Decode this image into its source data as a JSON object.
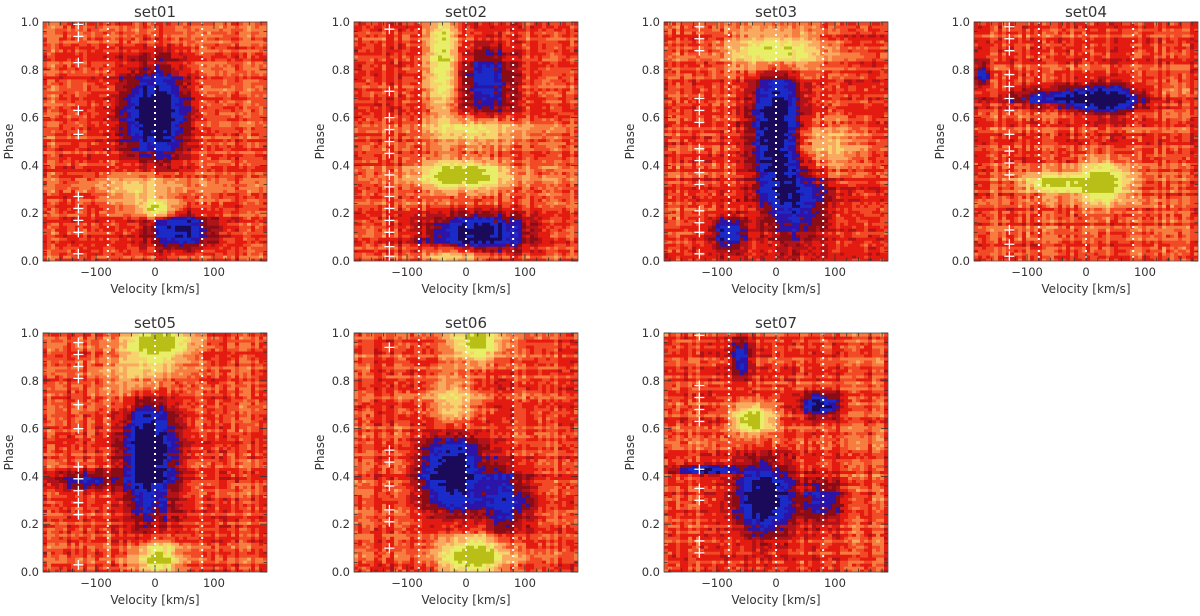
{
  "figure": {
    "colormap": [
      "#e31b10",
      "#f24a26",
      "#f77c40",
      "#f9a960",
      "#f7d36e",
      "#e9ee68",
      "#b9bf16",
      "#8a0d16",
      "#b0141a",
      "#2c14a8",
      "#1a2bc8",
      "#1b0a5a"
    ],
    "marker_color": "#ffffff",
    "guide_line_color": "#ffffff"
  },
  "chart_data": [
    {
      "type": "heatmap",
      "title": "set01",
      "xlabel": "Velocity [km/s]",
      "ylabel": "Phase",
      "xlim": [
        -190,
        190
      ],
      "ylim": [
        0,
        1
      ],
      "xticks": [
        "-100",
        "0",
        "100"
      ],
      "yticks": [
        "0.0",
        "0.2",
        "0.4",
        "0.6",
        "0.8",
        "1.0"
      ],
      "guide_lines_x": [
        -80,
        0,
        80
      ],
      "observation_phases": [
        0.03,
        0.12,
        0.17,
        0.22,
        0.27,
        0.53,
        0.63,
        0.83,
        0.94,
        0.99
      ],
      "features": [
        {
          "kind": "absorption",
          "v": 0,
          "phase": 0.62,
          "dv": 38,
          "dphase": 0.13,
          "strength": 1.0
        },
        {
          "kind": "absorption",
          "v": 45,
          "phase": 0.13,
          "dv": 38,
          "dphase": 0.05,
          "strength": 0.8
        },
        {
          "kind": "emission",
          "v": 5,
          "phase": 0.22,
          "dv": 18,
          "dphase": 0.025,
          "strength": 0.8
        },
        {
          "kind": "emission",
          "v": -25,
          "phase": 0.3,
          "dv": 45,
          "dphase": 0.06,
          "strength": 0.4
        }
      ]
    },
    {
      "type": "heatmap",
      "title": "set02",
      "xlabel": "Velocity [km/s]",
      "ylabel": "Phase",
      "xlim": [
        -190,
        190
      ],
      "ylim": [
        0,
        1
      ],
      "xticks": [
        "-100",
        "0",
        "100"
      ],
      "yticks": [
        "0.0",
        "0.2",
        "0.4",
        "0.6",
        "0.8",
        "1.0"
      ],
      "guide_lines_x": [
        -80,
        0,
        80
      ],
      "observation_phases": [
        0.02,
        0.06,
        0.12,
        0.17,
        0.22,
        0.27,
        0.31,
        0.36,
        0.45,
        0.5,
        0.55,
        0.6,
        0.71,
        0.97
      ],
      "features": [
        {
          "kind": "emission",
          "v": -5,
          "phase": 0.36,
          "dv": 48,
          "dphase": 0.04,
          "strength": 1.0
        },
        {
          "kind": "absorption",
          "v": 20,
          "phase": 0.12,
          "dv": 60,
          "dphase": 0.05,
          "strength": 0.95
        },
        {
          "kind": "emission",
          "v": -40,
          "phase": 0.85,
          "dv": 18,
          "dphase": 0.16,
          "strength": 0.7
        },
        {
          "kind": "emission",
          "v": 20,
          "phase": 0.55,
          "dv": 50,
          "dphase": 0.04,
          "strength": 0.55
        },
        {
          "kind": "absorption",
          "v": 35,
          "phase": 0.75,
          "dv": 30,
          "dphase": 0.1,
          "strength": 0.6
        },
        {
          "kind": "emission",
          "v": -15,
          "phase": 0.02,
          "dv": 40,
          "dphase": 0.03,
          "strength": 0.45
        }
      ]
    },
    {
      "type": "heatmap",
      "title": "set03",
      "xlabel": "Velocity [km/s]",
      "ylabel": "Phase",
      "xlim": [
        -190,
        190
      ],
      "ylim": [
        0,
        1
      ],
      "xticks": [
        "-100",
        "0",
        "100"
      ],
      "yticks": [
        "0.0",
        "0.2",
        "0.4",
        "0.6",
        "0.8",
        "1.0"
      ],
      "guide_lines_x": [
        -80,
        0,
        80
      ],
      "observation_phases": [
        0.03,
        0.12,
        0.16,
        0.21,
        0.32,
        0.37,
        0.42,
        0.47,
        0.58,
        0.63,
        0.68,
        0.88,
        0.93,
        0.98
      ],
      "features": [
        {
          "kind": "absorption",
          "v": 0,
          "phase": 0.55,
          "dv": 28,
          "dphase": 0.2,
          "strength": 1.0
        },
        {
          "kind": "absorption",
          "v": -80,
          "phase": 0.12,
          "dv": 20,
          "dphase": 0.05,
          "strength": 0.7
        },
        {
          "kind": "emission",
          "v": 0,
          "phase": 0.88,
          "dv": 48,
          "dphase": 0.06,
          "strength": 0.85
        },
        {
          "kind": "emission",
          "v": 80,
          "phase": 0.48,
          "dv": 50,
          "dphase": 0.07,
          "strength": 0.4
        },
        {
          "kind": "absorption",
          "v": 40,
          "phase": 0.25,
          "dv": 35,
          "dphase": 0.12,
          "strength": 0.55
        }
      ]
    },
    {
      "type": "heatmap",
      "title": "set04",
      "xlabel": "Velocity [km/s]",
      "ylabel": "Phase",
      "xlim": [
        -190,
        190
      ],
      "ylim": [
        0,
        1
      ],
      "xticks": [
        "-100",
        "0",
        "100"
      ],
      "yticks": [
        "0.0",
        "0.2",
        "0.4",
        "0.6",
        "0.8",
        "1.0"
      ],
      "guide_lines_x": [
        -80,
        0,
        80
      ],
      "observation_phases": [
        0.02,
        0.07,
        0.13,
        0.36,
        0.41,
        0.46,
        0.53,
        0.63,
        0.68,
        0.73,
        0.78,
        0.88,
        0.93,
        0.98
      ],
      "features": [
        {
          "kind": "absorption",
          "v": 35,
          "phase": 0.68,
          "dv": 40,
          "dphase": 0.04,
          "strength": 1.0
        },
        {
          "kind": "emission",
          "v": 30,
          "phase": 0.33,
          "dv": 28,
          "dphase": 0.06,
          "strength": 1.0
        },
        {
          "kind": "emission",
          "v": -50,
          "phase": 0.33,
          "dv": 40,
          "dphase": 0.03,
          "strength": 0.8
        },
        {
          "kind": "absorption",
          "v": -60,
          "phase": 0.69,
          "dv": 55,
          "dphase": 0.03,
          "strength": 0.55
        },
        {
          "kind": "absorption",
          "v": -175,
          "phase": 0.78,
          "dv": 8,
          "dphase": 0.03,
          "strength": 0.6
        }
      ]
    },
    {
      "type": "heatmap",
      "title": "set05",
      "xlabel": "Velocity [km/s]",
      "ylabel": "Phase",
      "xlim": [
        -190,
        190
      ],
      "ylim": [
        0,
        1
      ],
      "xticks": [
        "-100",
        "0",
        "100"
      ],
      "yticks": [
        "0.0",
        "0.2",
        "0.4",
        "0.6",
        "0.8",
        "1.0"
      ],
      "guide_lines_x": [
        -80,
        0,
        80
      ],
      "observation_phases": [
        0.03,
        0.24,
        0.29,
        0.34,
        0.39,
        0.44,
        0.6,
        0.7,
        0.81,
        0.86,
        0.91,
        0.96
      ],
      "features": [
        {
          "kind": "absorption",
          "v": -10,
          "phase": 0.5,
          "dv": 30,
          "dphase": 0.18,
          "strength": 1.0
        },
        {
          "kind": "emission",
          "v": 5,
          "phase": 0.96,
          "dv": 35,
          "dphase": 0.05,
          "strength": 1.0
        },
        {
          "kind": "emission",
          "v": 5,
          "phase": 0.06,
          "dv": 25,
          "dphase": 0.05,
          "strength": 0.9
        },
        {
          "kind": "absorption",
          "v": -120,
          "phase": 0.38,
          "dv": 40,
          "dphase": 0.03,
          "strength": 0.5
        },
        {
          "kind": "emission",
          "v": -20,
          "phase": 0.82,
          "dv": 40,
          "dphase": 0.08,
          "strength": 0.5
        }
      ]
    },
    {
      "type": "heatmap",
      "title": "set06",
      "xlabel": "Velocity [km/s]",
      "ylabel": "Phase",
      "xlim": [
        -190,
        190
      ],
      "ylim": [
        0,
        1
      ],
      "xticks": [
        "-100",
        "0",
        "100"
      ],
      "yticks": [
        "0.0",
        "0.2",
        "0.4",
        "0.6",
        "0.8",
        "1.0"
      ],
      "guide_lines_x": [
        -80,
        0,
        80
      ],
      "observation_phases": [
        0.1,
        0.21,
        0.26,
        0.36,
        0.46,
        0.51,
        0.94
      ],
      "features": [
        {
          "kind": "absorption",
          "v": -25,
          "phase": 0.42,
          "dv": 35,
          "dphase": 0.12,
          "strength": 1.0
        },
        {
          "kind": "emission",
          "v": 15,
          "phase": 0.07,
          "dv": 38,
          "dphase": 0.06,
          "strength": 1.0
        },
        {
          "kind": "emission",
          "v": 20,
          "phase": 0.96,
          "dv": 30,
          "dphase": 0.05,
          "strength": 0.9
        },
        {
          "kind": "absorption",
          "v": 70,
          "phase": 0.3,
          "dv": 30,
          "dphase": 0.1,
          "strength": 0.6
        },
        {
          "kind": "emission",
          "v": -20,
          "phase": 0.7,
          "dv": 30,
          "dphase": 0.08,
          "strength": 0.5
        }
      ]
    },
    {
      "type": "heatmap",
      "title": "set07",
      "xlabel": "Velocity [km/s]",
      "ylabel": "Phase",
      "xlim": [
        -190,
        190
      ],
      "ylim": [
        0,
        1
      ],
      "xticks": [
        "-100",
        "0",
        "100"
      ],
      "yticks": [
        "0.0",
        "0.2",
        "0.4",
        "0.6",
        "0.8",
        "1.0"
      ],
      "guide_lines_x": [
        -80,
        0,
        80
      ],
      "observation_phases": [
        0.08,
        0.13,
        0.3,
        0.35,
        0.43,
        0.63,
        0.68,
        0.73,
        0.78,
        0.99
      ],
      "features": [
        {
          "kind": "absorption",
          "v": -20,
          "phase": 0.31,
          "dv": 33,
          "dphase": 0.1,
          "strength": 1.0
        },
        {
          "kind": "emission",
          "v": -40,
          "phase": 0.64,
          "dv": 22,
          "dphase": 0.04,
          "strength": 1.0
        },
        {
          "kind": "absorption",
          "v": 75,
          "phase": 0.7,
          "dv": 22,
          "dphase": 0.03,
          "strength": 0.9
        },
        {
          "kind": "absorption",
          "v": -120,
          "phase": 0.43,
          "dv": 35,
          "dphase": 0.015,
          "strength": 0.8
        },
        {
          "kind": "absorption",
          "v": -60,
          "phase": 0.9,
          "dv": 12,
          "dphase": 0.06,
          "strength": 0.6
        },
        {
          "kind": "absorption",
          "v": 80,
          "phase": 0.3,
          "dv": 25,
          "dphase": 0.06,
          "strength": 0.5
        }
      ]
    }
  ]
}
